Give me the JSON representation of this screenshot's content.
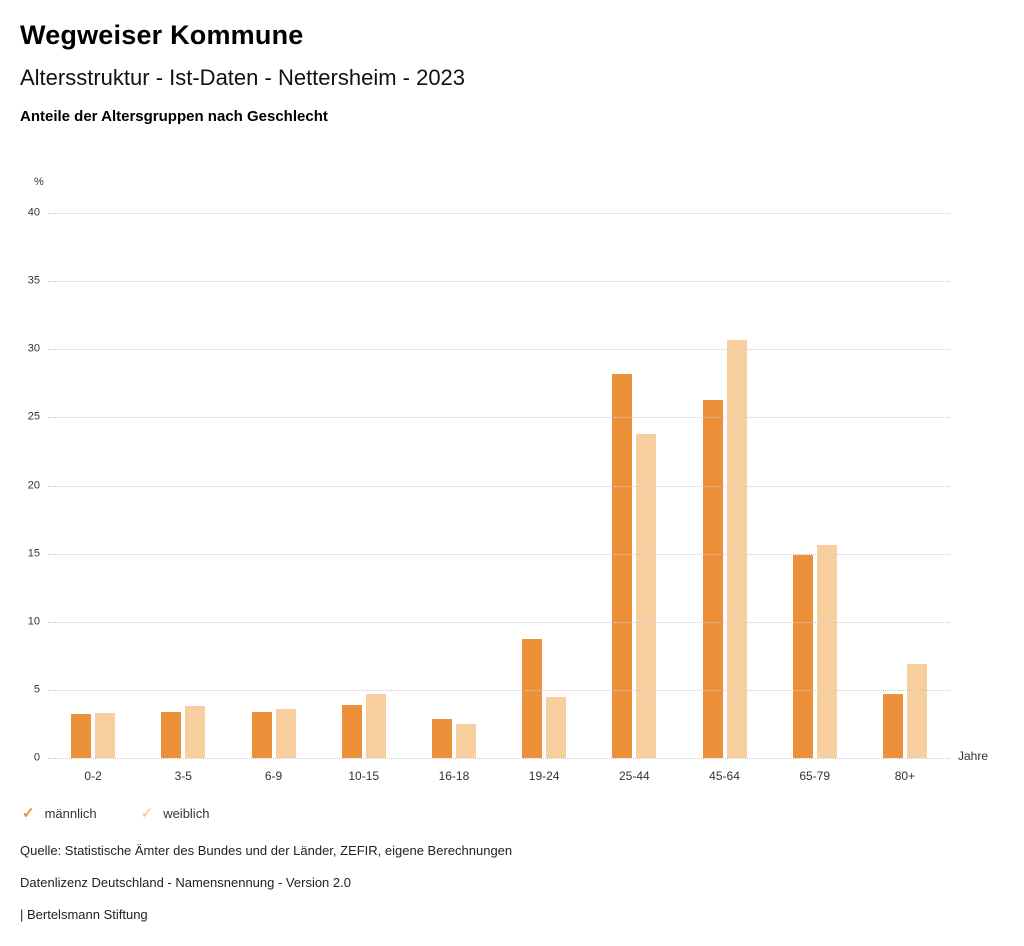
{
  "header": {
    "title": "Wegweiser Kommune",
    "subtitle": "Altersstruktur - Ist-Daten - Nettersheim - 2023",
    "caption": "Anteile der Altersgruppen nach Geschlecht"
  },
  "chart_data": {
    "type": "bar",
    "title": "Anteile der Altersgruppen nach Geschlecht",
    "categories": [
      "0-2",
      "3-5",
      "6-9",
      "10-15",
      "16-18",
      "19-24",
      "25-44",
      "45-64",
      "65-79",
      "80+"
    ],
    "series": [
      {
        "name": "männlich",
        "color": "#EC9139",
        "values": [
          3.2,
          3.4,
          3.4,
          3.9,
          2.9,
          8.7,
          28.2,
          26.3,
          14.9,
          4.7
        ]
      },
      {
        "name": "weiblich",
        "color": "#F7CF9F",
        "values": [
          3.3,
          3.8,
          3.6,
          4.7,
          2.5,
          4.5,
          23.8,
          30.7,
          15.6,
          6.9
        ]
      }
    ],
    "ylabel": "%",
    "xlabel": "Jahre",
    "ylim": [
      0,
      40
    ],
    "yticks": [
      0,
      5,
      10,
      15,
      20,
      25,
      30,
      35,
      40
    ],
    "grid": "horizontal-dotted",
    "legend_position": "bottom-left",
    "legend_marker": "check-icon"
  },
  "footer": {
    "source": "Quelle: Statistische Ämter des Bundes und der Länder, ZEFIR, eigene Berechnungen",
    "license": "Datenlizenz Deutschland - Namensnennung - Version 2.0",
    "attribution": "| Bertelsmann Stiftung"
  }
}
